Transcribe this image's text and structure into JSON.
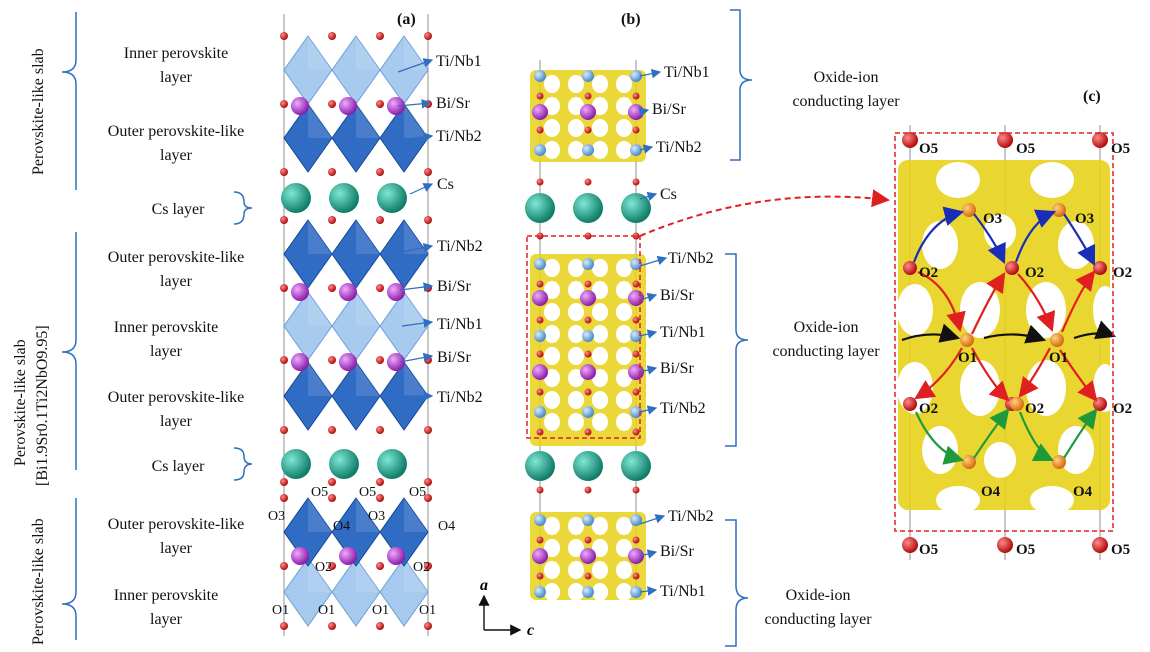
{
  "panels": {
    "a": "(a)",
    "b": "(b)",
    "c": "(c)"
  },
  "left_sections": {
    "slab_top": "Perovskite-like slab",
    "slab_mid_line1": "Perovskite-like slab",
    "slab_mid_formula": "[Bi1.9Sr0.1Ti2NbO9.95]",
    "slab_bottom": "Perovskite-like slab"
  },
  "layers_a": [
    {
      "l1": "Inner perovskite",
      "l2": "layer"
    },
    {
      "l1": "Outer perovskite-like",
      "l2": "layer"
    },
    {
      "l1": "Cs layer",
      "l2": ""
    },
    {
      "l1": "Outer perovskite-like",
      "l2": "layer"
    },
    {
      "l1": "Inner perovskite",
      "l2": "layer"
    },
    {
      "l1": "Outer perovskite-like",
      "l2": "layer"
    },
    {
      "l1": "Cs layer",
      "l2": ""
    },
    {
      "l1": "Outer perovskite-like",
      "l2": "layer"
    },
    {
      "l1": "Inner perovskite",
      "l2": "layer"
    }
  ],
  "atom_labels_a": [
    "Ti/Nb1",
    "Bi/Sr",
    "Ti/Nb2",
    "Cs",
    "Ti/Nb2",
    "Bi/Sr",
    "Ti/Nb1",
    "Bi/Sr",
    "Ti/Nb2"
  ],
  "oxygen_labels_a": {
    "o5": "O5",
    "o3": "O3",
    "o4": "O4",
    "o2": "O2",
    "o1": "O1"
  },
  "atom_labels_b": [
    "Ti/Nb1",
    "Bi/Sr",
    "Ti/Nb2",
    "Cs",
    "Ti/Nb2",
    "Bi/Sr",
    "Ti/Nb1",
    "Bi/Sr",
    "Ti/Nb2",
    "Ti/Nb2",
    "Bi/Sr",
    "Ti/Nb1"
  ],
  "conducting_layers": [
    {
      "l1": "Oxide-ion",
      "l2": "conducting layer"
    },
    {
      "l1": "Oxide-ion",
      "l2": "conducting layer"
    },
    {
      "l1": "Oxide-ion",
      "l2": "conducting layer"
    }
  ],
  "axes": {
    "a": "a",
    "c": "c"
  },
  "panel_c_labels": {
    "o5": "O5",
    "o3": "O3",
    "o2": "O2",
    "o1": "O1",
    "o4": "O4"
  },
  "colors": {
    "octa_dark": "#1f5fbf",
    "octa_light": "#8ab8e8",
    "oxygen": "#d01818",
    "bisr": "#b03ac8",
    "cs": "#1fa88e",
    "isosurface": "#e8d21a",
    "bracket": "#2e6fc0",
    "dashed": "#e02020",
    "arrow_red": "#e02020",
    "arrow_blue": "#1a2db8",
    "arrow_green": "#1f9a3a",
    "arrow_black": "#111111"
  }
}
